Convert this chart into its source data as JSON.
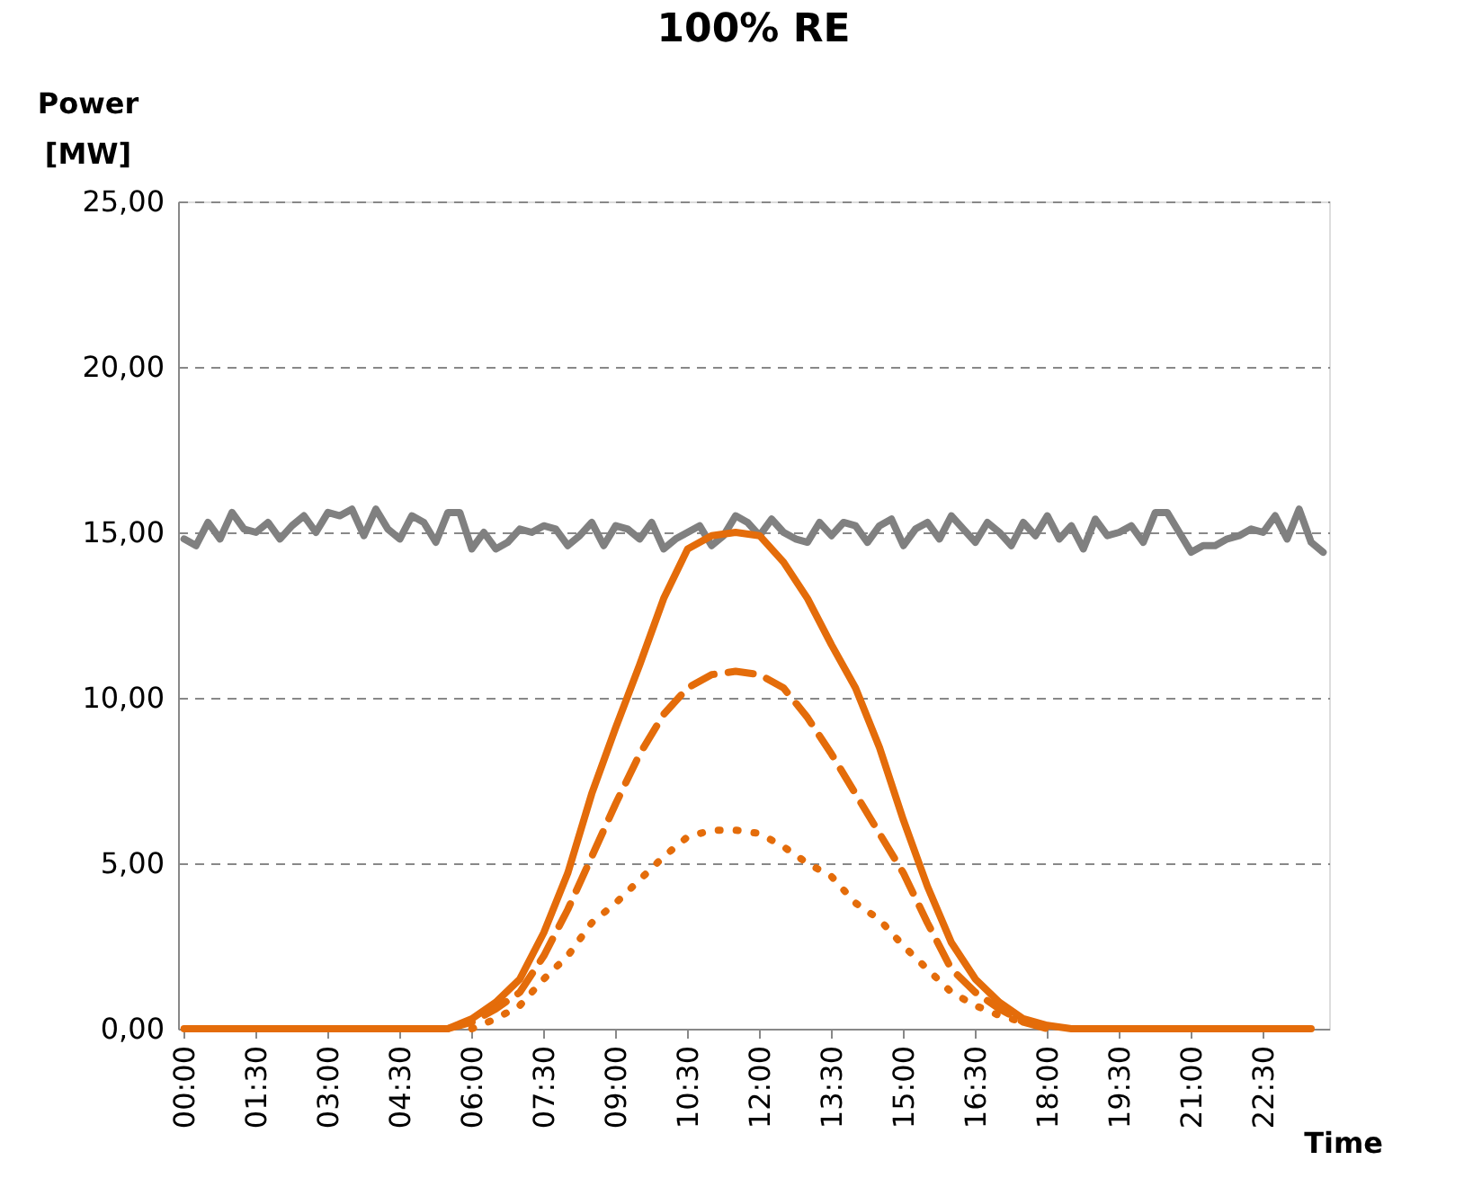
{
  "chart_data": {
    "type": "line",
    "title": "100% RE",
    "xlabel": "Time",
    "ylabel": "Power [MW]",
    "xlim": [
      -0.125,
      23.875
    ],
    "ylim": [
      0,
      25
    ],
    "yticks": [
      {
        "value": 0,
        "label": "0,00"
      },
      {
        "value": 5,
        "label": "5,00"
      },
      {
        "value": 10,
        "label": "10,00"
      },
      {
        "value": 15,
        "label": "15,00"
      },
      {
        "value": 20,
        "label": "20,00"
      },
      {
        "value": 25,
        "label": "25,00"
      }
    ],
    "xticks": [
      {
        "value": 0,
        "label": "00:00"
      },
      {
        "value": 1.5,
        "label": "01:30"
      },
      {
        "value": 3,
        "label": "03:00"
      },
      {
        "value": 4.5,
        "label": "04:30"
      },
      {
        "value": 6,
        "label": "06:00"
      },
      {
        "value": 7.5,
        "label": "07:30"
      },
      {
        "value": 9,
        "label": "09:00"
      },
      {
        "value": 10.5,
        "label": "10:30"
      },
      {
        "value": 12,
        "label": "12:00"
      },
      {
        "value": 13.5,
        "label": "13:30"
      },
      {
        "value": 15,
        "label": "15:00"
      },
      {
        "value": 16.5,
        "label": "16:30"
      },
      {
        "value": 18,
        "label": "18:00"
      },
      {
        "value": 19.5,
        "label": "19:30"
      },
      {
        "value": 21,
        "label": "21:00"
      },
      {
        "value": 22.5,
        "label": "22:30"
      }
    ],
    "grid": "y",
    "series": [
      {
        "color": "#808080",
        "line_style": "solid",
        "x": [
          0,
          0.25,
          0.5,
          0.75,
          1,
          1.25,
          1.5,
          1.75,
          2,
          2.25,
          2.5,
          2.75,
          3,
          3.25,
          3.5,
          3.75,
          4,
          4.25,
          4.5,
          4.75,
          5,
          5.25,
          5.5,
          5.75,
          6,
          6.25,
          6.5,
          6.75,
          7,
          7.25,
          7.5,
          7.75,
          8,
          8.25,
          8.5,
          8.75,
          9,
          9.25,
          9.5,
          9.75,
          10,
          10.25,
          10.5,
          10.75,
          11,
          11.25,
          11.5,
          11.75,
          12,
          12.25,
          12.5,
          12.75,
          13,
          13.25,
          13.5,
          13.75,
          14,
          14.25,
          14.5,
          14.75,
          15,
          15.25,
          15.5,
          15.75,
          16,
          16.25,
          16.5,
          16.75,
          17,
          17.25,
          17.5,
          17.75,
          18,
          18.25,
          18.5,
          18.75,
          19,
          19.25,
          19.5,
          19.75,
          20,
          20.25,
          20.5,
          20.75,
          21,
          21.25,
          21.5,
          21.75,
          22,
          22.25,
          22.5,
          22.75,
          23,
          23.25,
          23.5,
          23.75
        ],
        "values": [
          14.8,
          14.6,
          15.3,
          14.8,
          15.6,
          15.1,
          15.0,
          15.3,
          14.8,
          15.2,
          15.5,
          15.0,
          15.6,
          15.5,
          15.7,
          14.9,
          15.7,
          15.1,
          14.8,
          15.5,
          15.3,
          14.7,
          15.6,
          15.6,
          14.5,
          15.0,
          14.5,
          14.7,
          15.1,
          15.0,
          15.2,
          15.1,
          14.6,
          14.9,
          15.3,
          14.6,
          15.2,
          15.1,
          14.8,
          15.3,
          14.5,
          14.8,
          15.0,
          15.2,
          14.6,
          14.9,
          15.5,
          15.3,
          14.9,
          15.4,
          15.0,
          14.8,
          14.7,
          15.3,
          14.9,
          15.3,
          15.2,
          14.7,
          15.2,
          15.4,
          14.6,
          15.1,
          15.3,
          14.8,
          15.5,
          15.1,
          14.7,
          15.3,
          15.0,
          14.6,
          15.3,
          14.9,
          15.5,
          14.8,
          15.2,
          14.5,
          15.4,
          14.9,
          15.0,
          15.2,
          14.7,
          15.6,
          15.6,
          15.0,
          14.4,
          14.6,
          14.6,
          14.8,
          14.9,
          15.1,
          15.0,
          15.5,
          14.8,
          15.7,
          14.7,
          14.4
        ]
      },
      {
        "color": "#e46c0a",
        "line_style": "solid",
        "x": [
          0,
          0.5,
          1,
          1.5,
          2,
          2.5,
          3,
          3.5,
          4,
          4.5,
          5,
          5.5,
          6,
          6.5,
          7,
          7.5,
          8,
          8.5,
          9,
          9.5,
          10,
          10.5,
          11,
          11.5,
          12,
          12.5,
          13,
          13.5,
          14,
          14.5,
          15,
          15.5,
          16,
          16.5,
          17,
          17.5,
          18,
          18.5,
          19,
          19.5,
          20,
          20.5,
          21,
          21.5,
          22,
          22.5,
          23,
          23.5
        ],
        "values": [
          0,
          0,
          0,
          0,
          0,
          0,
          0,
          0,
          0,
          0,
          0,
          0,
          0.3,
          0.8,
          1.5,
          2.9,
          4.7,
          7.1,
          9.1,
          11.0,
          13.0,
          14.5,
          14.9,
          15.0,
          14.9,
          14.1,
          13.0,
          11.6,
          10.3,
          8.5,
          6.3,
          4.3,
          2.6,
          1.5,
          0.8,
          0.3,
          0.1,
          0,
          0,
          0,
          0,
          0,
          0,
          0,
          0,
          0,
          0,
          0
        ]
      },
      {
        "color": "#e46c0a",
        "line_style": "dashed",
        "x": [
          5.5,
          6,
          6.5,
          7,
          7.5,
          8,
          8.5,
          9,
          9.5,
          10,
          10.5,
          11,
          11.5,
          12,
          12.5,
          13,
          13.5,
          14,
          14.5,
          15,
          15.5,
          16,
          16.5,
          17,
          17.5,
          18
        ],
        "values": [
          0,
          0.2,
          0.6,
          1.1,
          2.2,
          3.6,
          5.2,
          6.8,
          8.3,
          9.5,
          10.3,
          10.7,
          10.8,
          10.7,
          10.3,
          9.4,
          8.3,
          7.1,
          5.9,
          4.7,
          3.2,
          1.8,
          1.1,
          0.6,
          0.2,
          0
        ]
      },
      {
        "color": "#e46c0a",
        "line_style": "dotted",
        "x": [
          6,
          6.5,
          7,
          7.5,
          8,
          8.5,
          9,
          9.5,
          10,
          10.5,
          11,
          11.5,
          12,
          12.5,
          13,
          13.5,
          14,
          14.5,
          15,
          15.5,
          16,
          16.5,
          17,
          17.5
        ],
        "values": [
          0,
          0.3,
          0.7,
          1.5,
          2.2,
          3.2,
          3.8,
          4.5,
          5.2,
          5.8,
          6.0,
          6.0,
          5.9,
          5.5,
          5.0,
          4.6,
          3.8,
          3.3,
          2.5,
          1.8,
          1.1,
          0.7,
          0.4,
          0.2
        ]
      }
    ]
  }
}
